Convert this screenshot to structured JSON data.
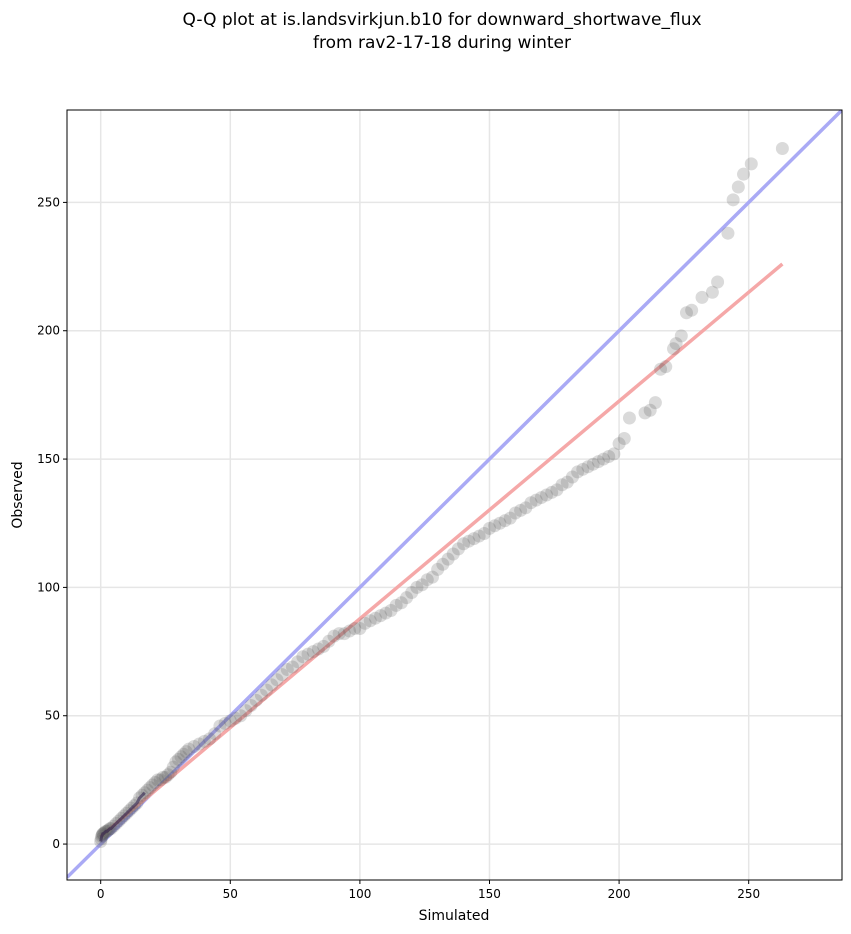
{
  "chart_data": {
    "type": "scatter",
    "title": "Q-Q plot at is.landsvirkjun.b10 for downward_shortwave_flux",
    "subtitle": "from rav2-17-18 during winter",
    "xlabel": "Simulated",
    "ylabel": "Observed",
    "xlim": [
      -13,
      286
    ],
    "ylim": [
      -14,
      286
    ],
    "xticks": [
      0,
      50,
      100,
      150,
      200,
      250
    ],
    "yticks": [
      0,
      50,
      100,
      150,
      200,
      250
    ],
    "grid": true,
    "reference_lines": [
      {
        "kind": "identity",
        "color": "#aaaaf5",
        "from": [
          -13,
          -13
        ],
        "to": [
          286,
          286
        ]
      },
      {
        "kind": "fit",
        "color": "#f5a8a8",
        "from": [
          0,
          3
        ],
        "to": [
          263,
          226
        ]
      }
    ],
    "series": [
      {
        "marker_color": "#555555",
        "x": [
          0,
          0.2,
          0.4,
          0.6,
          0.8,
          1,
          1.5,
          2,
          2.5,
          3,
          3.5,
          4,
          5,
          6,
          7,
          8,
          9,
          10,
          11,
          12,
          13,
          14,
          15,
          16,
          17,
          18,
          19,
          20,
          21,
          22,
          23,
          24,
          25,
          26,
          27,
          28,
          29,
          30,
          31,
          32,
          33,
          34,
          36,
          38,
          40,
          42,
          44,
          46,
          48,
          50,
          52,
          54,
          56,
          58,
          60,
          62,
          64,
          66,
          68,
          70,
          72,
          74,
          76,
          78,
          80,
          82,
          84,
          86,
          88,
          90,
          92,
          94,
          96,
          98,
          100,
          102,
          104,
          106,
          108,
          110,
          112,
          114,
          116,
          118,
          120,
          122,
          124,
          126,
          128,
          130,
          132,
          134,
          136,
          138,
          140,
          142,
          144,
          146,
          148,
          150,
          152,
          154,
          156,
          158,
          160,
          162,
          164,
          166,
          168,
          170,
          172,
          174,
          176,
          178,
          180,
          182,
          184,
          186,
          188,
          190,
          192,
          194,
          196,
          198,
          200,
          202,
          204,
          210,
          212,
          214,
          216,
          218,
          221,
          222,
          224,
          226,
          228,
          232,
          236,
          238,
          242,
          244,
          246,
          248,
          251,
          263
        ],
        "y": [
          1,
          2,
          3,
          3.5,
          4,
          4,
          4.5,
          5,
          5,
          5.5,
          6,
          6,
          7,
          8,
          9,
          10,
          11,
          12,
          13,
          14,
          15,
          16,
          18,
          19,
          20,
          21,
          22,
          23,
          24,
          25,
          25,
          26,
          26,
          27,
          28,
          30,
          32,
          33,
          34,
          35,
          36,
          37,
          38,
          39,
          40,
          41,
          43,
          46,
          47,
          48,
          49,
          50,
          52,
          54,
          56,
          58,
          60,
          62,
          64,
          66,
          68,
          69,
          71,
          73,
          74,
          75,
          76,
          77,
          79,
          81,
          82,
          82,
          83,
          84,
          84,
          86,
          87,
          88,
          89,
          90,
          91,
          93,
          94,
          96,
          98,
          100,
          101,
          103,
          104,
          107,
          109,
          111,
          113,
          115,
          117,
          118,
          119,
          120,
          121,
          123,
          124,
          125,
          126,
          127,
          129,
          130,
          131,
          133,
          134,
          135,
          136,
          137,
          138,
          140,
          141,
          143,
          145,
          146,
          147,
          148,
          149,
          150,
          151,
          152,
          156,
          158,
          166,
          168,
          169,
          172,
          185,
          186,
          193,
          195,
          198,
          207,
          208,
          213,
          215,
          219,
          238,
          251,
          256,
          261,
          265,
          271
        ]
      }
    ]
  }
}
